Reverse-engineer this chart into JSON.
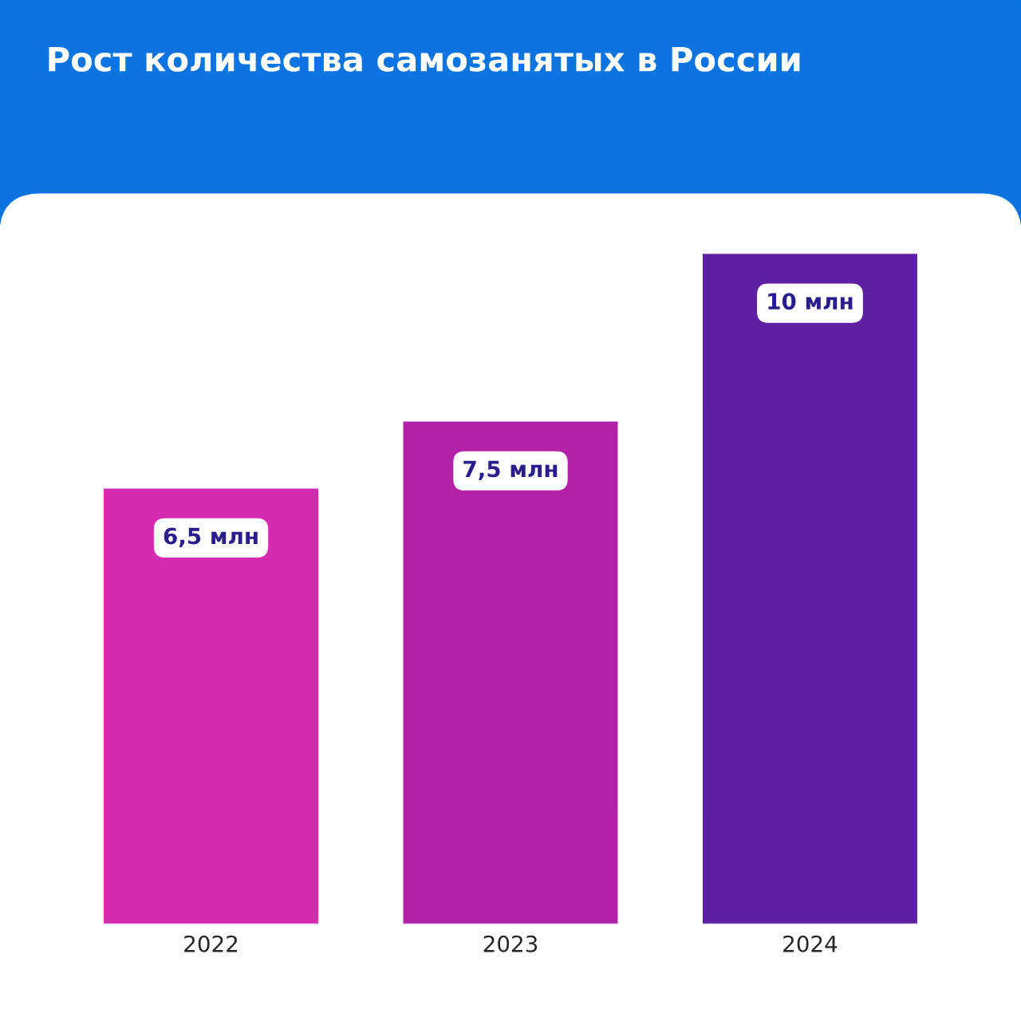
{
  "chart_data": {
    "type": "bar",
    "title": "Рост количества самозанятых в России",
    "categories": [
      "2022",
      "2023",
      "2024"
    ],
    "values": [
      6.5,
      7.5,
      10
    ],
    "value_labels": [
      "6,5 млн",
      "7,5 млн",
      "10 млн"
    ],
    "colors": [
      "#d52bb0",
      "#b321a9",
      "#5e1fa3"
    ],
    "grid": false,
    "legend": false
  }
}
